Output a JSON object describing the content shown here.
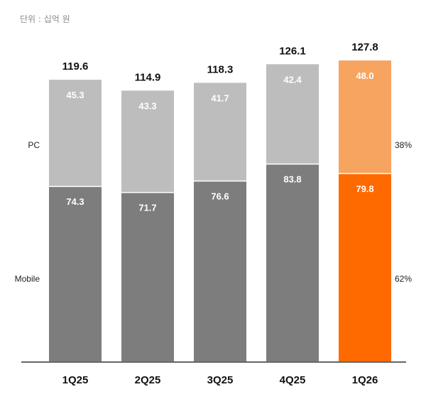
{
  "unit_note": "단위 : 십억 원",
  "chart_data": {
    "type": "bar",
    "stacked": true,
    "categories": [
      "1Q25",
      "2Q25",
      "3Q25",
      "4Q25",
      "1Q26"
    ],
    "series": [
      {
        "name": "Mobile",
        "values": [
          74.3,
          71.7,
          76.6,
          83.8,
          79.8
        ]
      },
      {
        "name": "PC",
        "values": [
          45.3,
          43.3,
          41.7,
          42.4,
          48.0
        ]
      }
    ],
    "value_labels": {
      "Mobile": [
        "74.3",
        "71.7",
        "76.6",
        "83.8",
        "79.8"
      ],
      "PC": [
        "45.3",
        "43.3",
        "41.7",
        "42.4",
        "48.0"
      ]
    },
    "totals": [
      "119.6",
      "114.9",
      "118.3",
      "126.1",
      "127.8"
    ],
    "shares": {
      "PC": "38%",
      "Mobile": "62%"
    },
    "ylim": [
      0,
      127.8
    ],
    "grid": false,
    "legend": "left",
    "colors": {
      "mobile": "#7d7d7d",
      "pc": "#bdbdbd",
      "highlight_mobile": "#ff6a00",
      "highlight_pc": "#f6a460",
      "axis": "#333333"
    },
    "highlight_index": 4
  }
}
